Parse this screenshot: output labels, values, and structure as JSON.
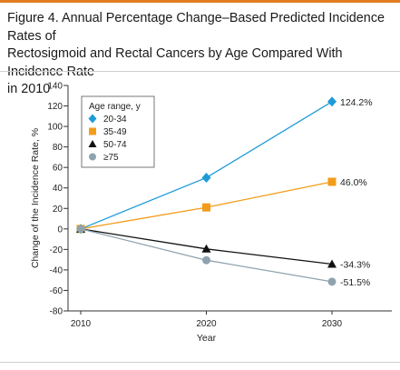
{
  "figure": {
    "title_lines": [
      "Figure 4. Annual Percentage Change–Based Predicted Incidence Rates of",
      "Rectosigmoid and Rectal Cancers by Age Compared With Incidence Rate",
      "in 2010"
    ]
  },
  "chart_data": {
    "type": "line",
    "xlabel": "Year",
    "ylabel": "Change of the Incidence Rate, %",
    "x": [
      2010,
      2020,
      2030
    ],
    "ylim": [
      -80,
      140
    ],
    "yticks": [
      -80,
      -60,
      -40,
      -20,
      0,
      20,
      40,
      60,
      80,
      100,
      120,
      140
    ],
    "grid": false,
    "legend_title": "Age range, y",
    "legend_placement": "top-left",
    "series": [
      {
        "name": "20-34",
        "values": [
          0,
          50,
          124.2
        ],
        "end_label": "124.2%",
        "color": "#1e9bd7",
        "marker": "diamond"
      },
      {
        "name": "35-49",
        "values": [
          0,
          21,
          46.0
        ],
        "end_label": "46.0%",
        "color": "#f39c1a",
        "marker": "square"
      },
      {
        "name": "50-74",
        "values": [
          0,
          -19.5,
          -34.3
        ],
        "end_label": "-34.3%",
        "color": "#111111",
        "marker": "triangle"
      },
      {
        "name": "≥75",
        "values": [
          0,
          -30.5,
          -51.5
        ],
        "end_label": "-51.5%",
        "color": "#8fa3af",
        "marker": "circle"
      }
    ]
  }
}
